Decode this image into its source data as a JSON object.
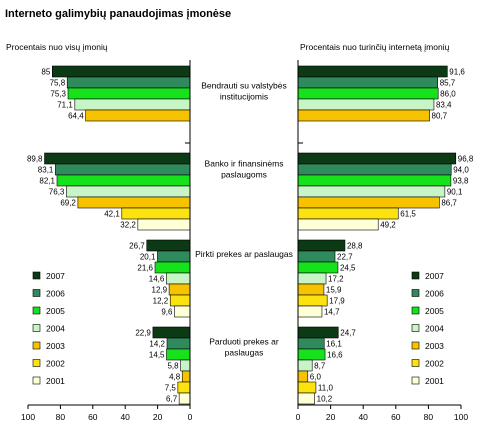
{
  "chart_data": {
    "type": "bar",
    "title": "Interneto galimybių panaudojimas įmonėse",
    "categories": [
      "Bendrauti su valstybės institucijomis",
      "Banko ir finansinėms paslaugoms",
      "Pirkti prekes ar paslaugas",
      "Parduoti prekes ar paslaugas"
    ],
    "category_lines": [
      [
        "Bendrauti su valstybės",
        "institucijomis"
      ],
      [
        "Banko ir finansinėms",
        "paslaugoms"
      ],
      [
        "Pirkti prekes ar paslaugas"
      ],
      [
        "Parduoti prekes ar",
        "paslaugas"
      ]
    ],
    "years": [
      "2007",
      "2006",
      "2005",
      "2004",
      "2003",
      "2002",
      "2001"
    ],
    "colors": {
      "2007": "#0b3a15",
      "2006": "#2f8a5c",
      "2005": "#16e21c",
      "2004": "#c8f5c6",
      "2003": "#f7c300",
      "2002": "#fce20e",
      "2001": "#ffffd8"
    },
    "legend_placement": "bottom",
    "axis_ticks": [
      "100",
      "80",
      "60",
      "40",
      "20",
      "0"
    ],
    "panels": [
      {
        "side": "left",
        "label": "Procentais nuo visų įmonių",
        "xlim": [
          0,
          100
        ],
        "values": [
          [
            "85",
            "75,8",
            "75,3",
            "71,1",
            "64,4",
            null,
            null
          ],
          [
            "89,8",
            "83,1",
            "82,1",
            "76,3",
            "69,2",
            "42,1",
            "32,2"
          ],
          [
            "26,7",
            "20,1",
            "21,6",
            "14,6",
            "12,9",
            "12,2",
            "9,6"
          ],
          [
            "22,9",
            "14,2",
            "14,5",
            "5,8",
            "4,8",
            "7,5",
            "6,7"
          ]
        ]
      },
      {
        "side": "right",
        "label": "Procentais nuo turinčių internetą įmonių",
        "xlim": [
          0,
          100
        ],
        "values": [
          [
            "91,6",
            "85,7",
            "86,0",
            "83,4",
            "80,7",
            null,
            null
          ],
          [
            "96,8",
            "94,0",
            "93,8",
            "90,1",
            "86,7",
            "61,5",
            "49,2"
          ],
          [
            "28,8",
            "22,7",
            "24,5",
            "17,2",
            "15,9",
            "17,9",
            "14,7"
          ],
          [
            "24,7",
            "16,1",
            "16,6",
            "8,7",
            "6,0",
            "11,0",
            "10,2"
          ]
        ]
      }
    ]
  }
}
